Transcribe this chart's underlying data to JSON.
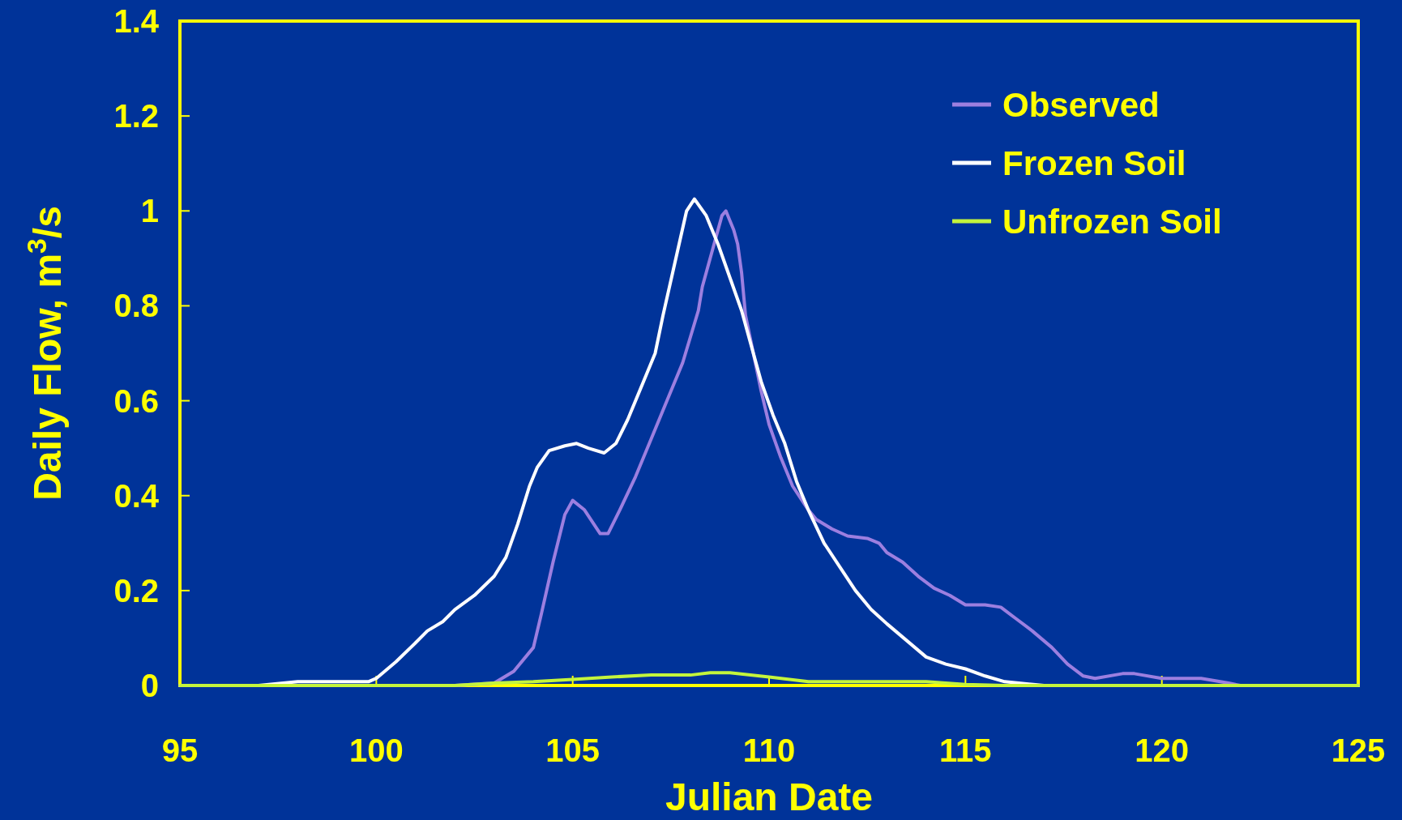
{
  "chart_data": {
    "type": "line",
    "xlabel": "Julian Date",
    "ylabel": "Daily Flow,  m$^{3}$/s",
    "xlim": [
      95,
      125
    ],
    "ylim": [
      0,
      1.4
    ],
    "xticks": [
      95,
      100,
      105,
      110,
      115,
      120,
      125
    ],
    "yticks": [
      0,
      0.2,
      0.4,
      0.6,
      0.8,
      1,
      1.2,
      1.4
    ],
    "grid": false,
    "legend": "top right",
    "marker": "none",
    "line_style": "solid",
    "series": [
      {
        "name": "Observed",
        "color": "#9c7fe0",
        "x": [
          95,
          100,
          102,
          103,
          103.5,
          104,
          104.2,
          104.5,
          104.8,
          105,
          105.3,
          105.7,
          105.9,
          106.2,
          106.6,
          107,
          107.4,
          107.8,
          108.2,
          108.3,
          108.6,
          108.8,
          108.9,
          109.1,
          109.2,
          109.3,
          109.4,
          109.6,
          109.8,
          110,
          110.3,
          110.6,
          111,
          111.2,
          111.6,
          112,
          112.5,
          112.8,
          113,
          113.4,
          113.8,
          114.2,
          114.6,
          115,
          115.5,
          115.9,
          116.3,
          116.7,
          117.2,
          117.6,
          118,
          118.3,
          119,
          119.3,
          120,
          120.3,
          121,
          121.7,
          122,
          125
        ],
        "values": [
          0,
          0,
          0,
          0.005,
          0.03,
          0.08,
          0.15,
          0.26,
          0.36,
          0.39,
          0.37,
          0.32,
          0.32,
          0.37,
          0.44,
          0.52,
          0.6,
          0.68,
          0.79,
          0.84,
          0.93,
          0.99,
          1,
          0.96,
          0.93,
          0.87,
          0.78,
          0.7,
          0.62,
          0.55,
          0.48,
          0.42,
          0.37,
          0.35,
          0.33,
          0.315,
          0.31,
          0.3,
          0.28,
          0.26,
          0.23,
          0.205,
          0.19,
          0.17,
          0.17,
          0.165,
          0.14,
          0.115,
          0.08,
          0.045,
          0.02,
          0.015,
          0.025,
          0.025,
          0.015,
          0.015,
          0.015,
          0.005,
          0,
          0
        ]
      },
      {
        "name": "Frozen Soil",
        "color": "#ffffff",
        "x": [
          95,
          97,
          98,
          99.8,
          100,
          100.5,
          101,
          101.3,
          101.7,
          102,
          102.5,
          103,
          103.3,
          103.6,
          103.9,
          104.1,
          104.4,
          104.8,
          105.1,
          105.4,
          105.8,
          106.1,
          106.4,
          106.8,
          107.1,
          107.3,
          107.6,
          107.9,
          108.1,
          108.4,
          108.7,
          109,
          109.3,
          109.5,
          109.8,
          110.1,
          110.4,
          110.7,
          111,
          111.4,
          111.8,
          112.2,
          112.6,
          113,
          113.5,
          114,
          114.5,
          115,
          115.5,
          116,
          117,
          125
        ],
        "values": [
          0,
          0,
          0.008,
          0.008,
          0.015,
          0.05,
          0.09,
          0.115,
          0.135,
          0.16,
          0.19,
          0.23,
          0.27,
          0.34,
          0.42,
          0.46,
          0.495,
          0.505,
          0.51,
          0.5,
          0.49,
          0.51,
          0.56,
          0.64,
          0.7,
          0.78,
          0.89,
          1,
          1.025,
          0.99,
          0.93,
          0.86,
          0.79,
          0.73,
          0.64,
          0.57,
          0.51,
          0.43,
          0.37,
          0.3,
          0.25,
          0.2,
          0.16,
          0.13,
          0.095,
          0.06,
          0.045,
          0.035,
          0.02,
          0.008,
          0,
          0
        ]
      },
      {
        "name": "Unfrozen Soil",
        "color": "#c4f53c",
        "x": [
          95,
          102,
          103,
          104,
          105,
          106,
          107,
          108,
          108.5,
          109,
          110,
          111,
          114,
          115,
          116,
          125
        ],
        "values": [
          0,
          0,
          0.005,
          0.008,
          0.013,
          0.018,
          0.022,
          0.022,
          0.027,
          0.027,
          0.018,
          0.008,
          0.008,
          0.002,
          0,
          0
        ]
      }
    ]
  }
}
